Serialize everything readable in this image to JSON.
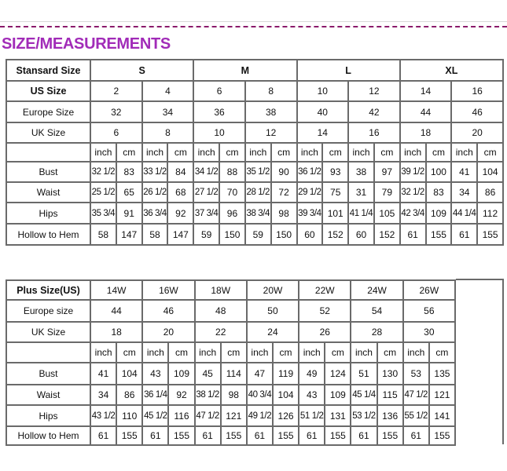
{
  "title": "SIZE/MEASUREMENTS",
  "accent_color": "#a12bb8",
  "standard": {
    "header_label": "Stansard Size",
    "groups": [
      "S",
      "M",
      "L",
      "XL"
    ],
    "us_label": "US Size",
    "us": [
      "2",
      "4",
      "6",
      "8",
      "10",
      "12",
      "14",
      "16"
    ],
    "europe_label": "Europe Size",
    "europe": [
      "32",
      "34",
      "36",
      "38",
      "40",
      "42",
      "44",
      "46"
    ],
    "uk_label": "UK Size",
    "uk": [
      "6",
      "8",
      "10",
      "12",
      "14",
      "16",
      "18",
      "20"
    ],
    "unit_inch": "inch",
    "unit_cm": "cm",
    "rows": [
      {
        "label": "Bust",
        "values": [
          "32 1/2",
          "83",
          "33 1/2",
          "84",
          "34 1/2",
          "88",
          "35 1/2",
          "90",
          "36 1/2",
          "93",
          "38",
          "97",
          "39 1/2",
          "100",
          "41",
          "104"
        ]
      },
      {
        "label": "Waist",
        "values": [
          "25 1/2",
          "65",
          "26 1/2",
          "68",
          "27 1/2",
          "70",
          "28 1/2",
          "72",
          "29 1/2",
          "75",
          "31",
          "79",
          "32 1/2",
          "83",
          "34",
          "86"
        ]
      },
      {
        "label": "Hips",
        "values": [
          "35 3/4",
          "91",
          "36 3/4",
          "92",
          "37 3/4",
          "96",
          "38 3/4",
          "98",
          "39 3/4",
          "101",
          "41 1/4",
          "105",
          "42 3/4",
          "109",
          "44 1/4",
          "112"
        ]
      },
      {
        "label": "Hollow to Hem",
        "values": [
          "58",
          "147",
          "58",
          "147",
          "59",
          "150",
          "59",
          "150",
          "60",
          "152",
          "60",
          "152",
          "61",
          "155",
          "61",
          "155"
        ]
      }
    ]
  },
  "plus": {
    "header_label": "Plus Size(US)",
    "sizes": [
      "14W",
      "16W",
      "18W",
      "20W",
      "22W",
      "24W",
      "26W"
    ],
    "europe_label": "Europe size",
    "europe": [
      "44",
      "46",
      "48",
      "50",
      "52",
      "54",
      "56"
    ],
    "uk_label": "UK Size",
    "uk": [
      "18",
      "20",
      "22",
      "24",
      "26",
      "28",
      "30"
    ],
    "unit_inch": "inch",
    "unit_cm": "cm",
    "rows": [
      {
        "label": "Bust",
        "values": [
          "41",
          "104",
          "43",
          "109",
          "45",
          "114",
          "47",
          "119",
          "49",
          "124",
          "51",
          "130",
          "53",
          "135"
        ]
      },
      {
        "label": "Waist",
        "values": [
          "34",
          "86",
          "36 1/4",
          "92",
          "38 1/2",
          "98",
          "40 3/4",
          "104",
          "43",
          "109",
          "45 1/4",
          "115",
          "47 1/2",
          "121"
        ]
      },
      {
        "label": "Hips",
        "values": [
          "43 1/2",
          "110",
          "45 1/2",
          "116",
          "47 1/2",
          "121",
          "49 1/2",
          "126",
          "51 1/2",
          "131",
          "53 1/2",
          "136",
          "55 1/2",
          "141"
        ]
      },
      {
        "label": "Hollow to Hem",
        "values": [
          "61",
          "155",
          "61",
          "155",
          "61",
          "155",
          "61",
          "155",
          "61",
          "155",
          "61",
          "155",
          "61",
          "155"
        ]
      }
    ]
  }
}
